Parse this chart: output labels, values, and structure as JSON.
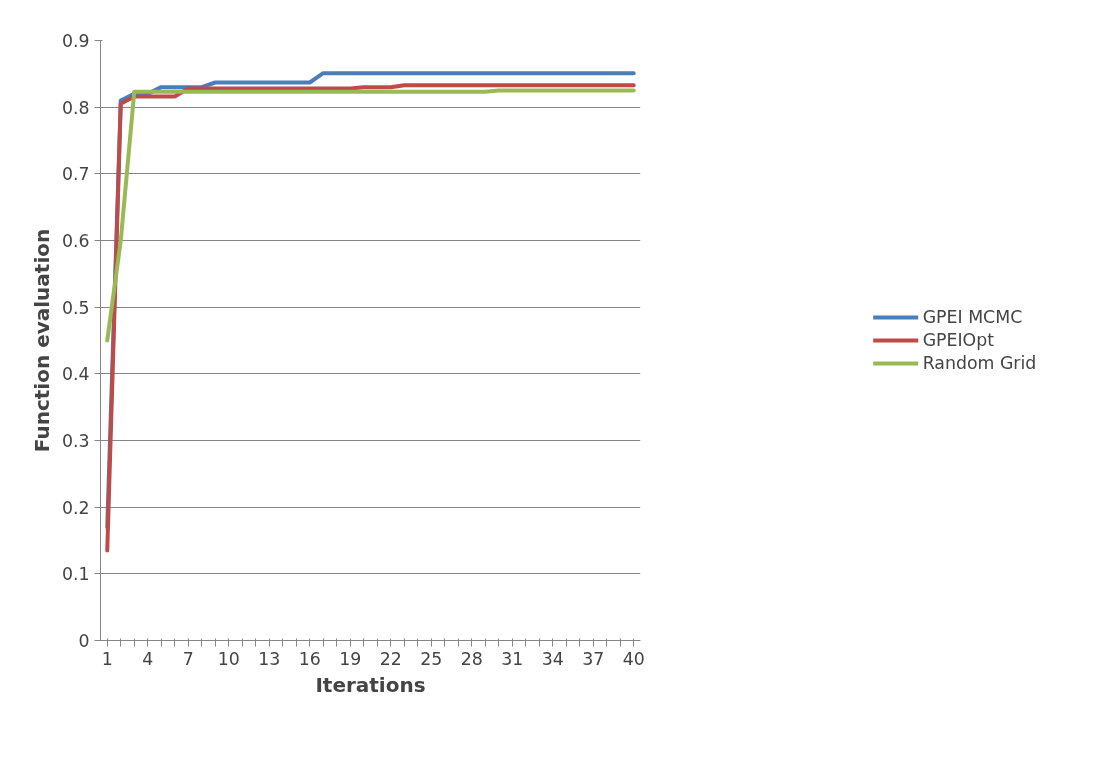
{
  "chart_data": {
    "type": "line",
    "xlabel": "Iterations",
    "ylabel": "Function evaluation",
    "categories": [
      "1",
      null,
      null,
      "4",
      null,
      null,
      "7",
      null,
      null,
      "10",
      null,
      null,
      "13",
      null,
      null,
      "16",
      null,
      null,
      "19",
      null,
      null,
      "22",
      null,
      null,
      "25",
      null,
      null,
      "28",
      null,
      null,
      "31",
      null,
      null,
      "34",
      null,
      null,
      "37",
      null,
      null,
      "40"
    ],
    "series": [
      {
        "name": "GPEI MCMC",
        "color": "#4a7ebb",
        "values": [
          0.17,
          0.81,
          0.82,
          0.82,
          0.83,
          0.83,
          0.83,
          0.83,
          0.837,
          0.837,
          0.837,
          0.837,
          0.837,
          0.837,
          0.837,
          0.837,
          0.851,
          0.851,
          0.851,
          0.851,
          0.851,
          0.851,
          0.851,
          0.851,
          0.851,
          0.851,
          0.851,
          0.851,
          0.851,
          0.851,
          0.851,
          0.851,
          0.851,
          0.851,
          0.851,
          0.851,
          0.851,
          0.851,
          0.851,
          0.851
        ]
      },
      {
        "name": "GPEIOpt",
        "color": "#be4b48",
        "values": [
          0.135,
          0.805,
          0.816,
          0.816,
          0.816,
          0.816,
          0.828,
          0.828,
          0.828,
          0.828,
          0.828,
          0.828,
          0.828,
          0.828,
          0.828,
          0.828,
          0.828,
          0.828,
          0.828,
          0.83,
          0.83,
          0.83,
          0.833,
          0.833,
          0.833,
          0.833,
          0.833,
          0.833,
          0.833,
          0.833,
          0.833,
          0.833,
          0.833,
          0.833,
          0.833,
          0.833,
          0.833,
          0.833,
          0.833,
          0.833
        ]
      },
      {
        "name": "Random Grid",
        "color": "#98b954",
        "values": [
          0.45,
          0.6,
          0.823,
          0.823,
          0.823,
          0.823,
          0.823,
          0.823,
          0.823,
          0.823,
          0.823,
          0.823,
          0.823,
          0.823,
          0.823,
          0.823,
          0.823,
          0.823,
          0.823,
          0.823,
          0.823,
          0.823,
          0.823,
          0.823,
          0.823,
          0.823,
          0.823,
          0.823,
          0.823,
          0.825,
          0.825,
          0.825,
          0.825,
          0.825,
          0.825,
          0.825,
          0.825,
          0.825,
          0.825,
          0.825
        ]
      }
    ],
    "ylim": [
      0,
      0.9
    ],
    "yticks": [
      0,
      0.1,
      0.2,
      0.3,
      0.4,
      0.5,
      0.6,
      0.7,
      0.8,
      0.9
    ],
    "grid": "y",
    "legend": "right",
    "line_style": "solid",
    "marker": "none"
  }
}
